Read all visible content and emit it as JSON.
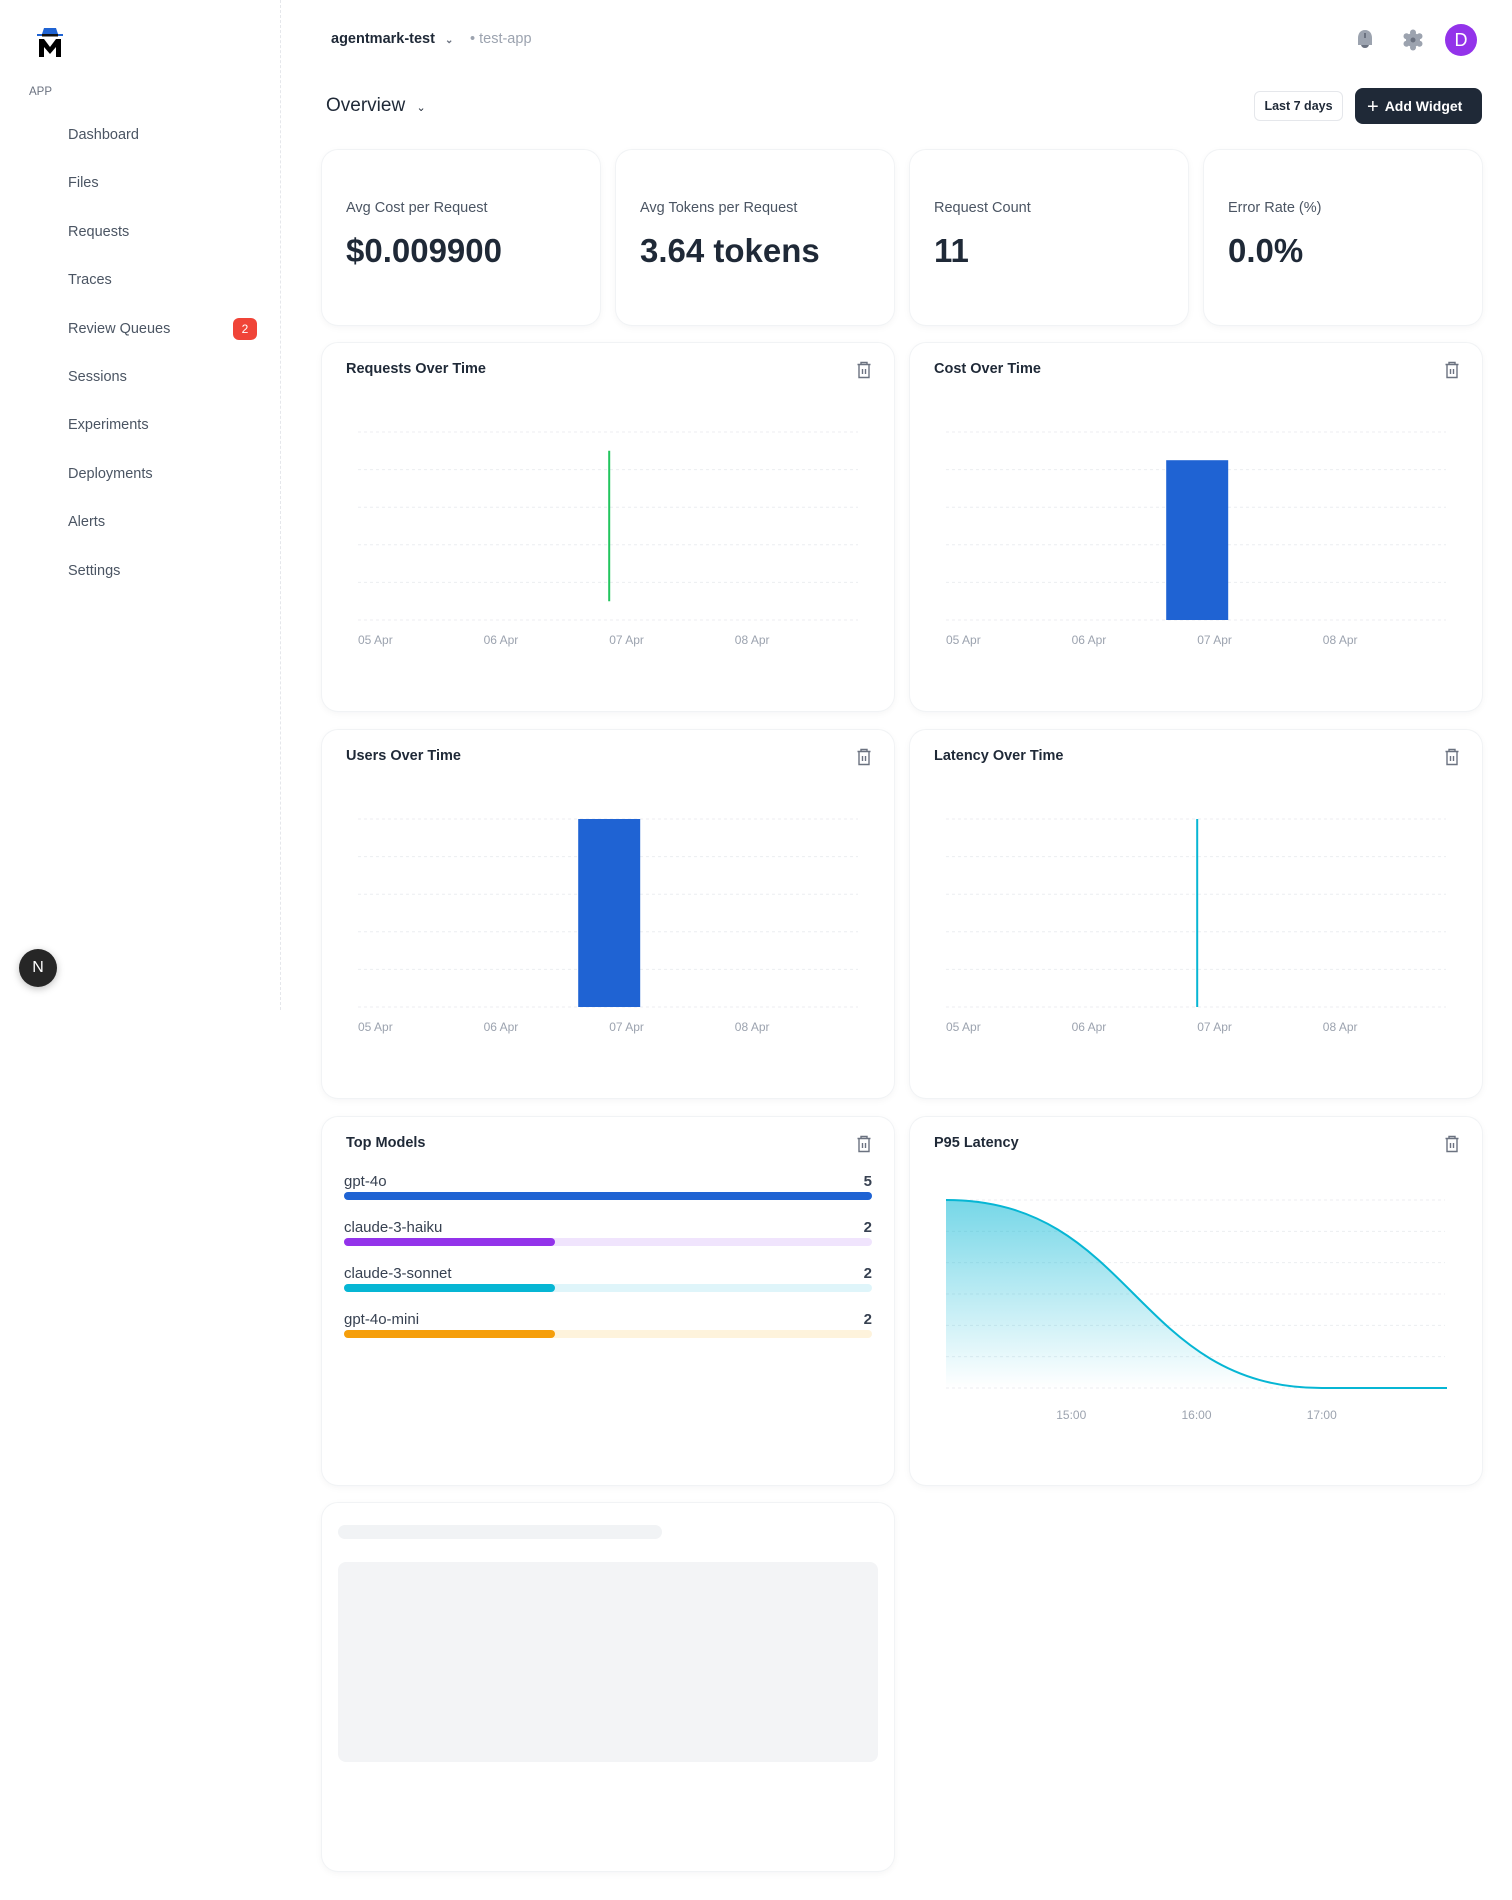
{
  "sidebar": {
    "section_label": "APP",
    "items": [
      {
        "label": "Dashboard"
      },
      {
        "label": "Files"
      },
      {
        "label": "Requests"
      },
      {
        "label": "Traces"
      },
      {
        "label": "Review Queues",
        "badge": "2"
      },
      {
        "label": "Sessions"
      },
      {
        "label": "Experiments"
      },
      {
        "label": "Deployments"
      },
      {
        "label": "Alerts"
      },
      {
        "label": "Settings"
      }
    ],
    "floating_avatar": "N"
  },
  "header": {
    "org": "agentmark-test",
    "app": "test-app",
    "avatar_initial": "D",
    "avatar_color": "#9333ea",
    "icons": [
      "bell-icon",
      "gear-icon"
    ]
  },
  "toolbar": {
    "title": "Overview",
    "range_label": "Last 7 days",
    "add_widget_label": "Add Widget"
  },
  "stats": [
    {
      "label": "Avg Cost per Request",
      "value": "$0.009900"
    },
    {
      "label": "Avg Tokens per Request",
      "value": "3.64 tokens"
    },
    {
      "label": "Request Count",
      "value": "11"
    },
    {
      "label": "Error Rate (%)",
      "value": "0.0%"
    }
  ],
  "widgets": {
    "requests": {
      "title": "Requests Over Time"
    },
    "cost": {
      "title": "Cost Over Time"
    },
    "users": {
      "title": "Users Over Time"
    },
    "latency": {
      "title": "Latency Over Time"
    },
    "top_models": {
      "title": "Top Models"
    },
    "p95": {
      "title": "P95 Latency"
    }
  },
  "top_models": [
    {
      "name": "gpt-4o",
      "count": "5",
      "value": 5,
      "color": "#1f63d3",
      "track": "#dbe6f8"
    },
    {
      "name": "claude-3-haiku",
      "count": "2",
      "value": 2,
      "color": "#9333ea",
      "track": "#f0e4fd"
    },
    {
      "name": "claude-3-sonnet",
      "count": "2",
      "value": 2,
      "color": "#06b6d4",
      "track": "#dff5fa"
    },
    {
      "name": "gpt-4o-mini",
      "count": "2",
      "value": 2,
      "color": "#f59e0b",
      "track": "#fef3dc"
    }
  ],
  "chart_data": [
    {
      "id": "requests",
      "type": "line",
      "title": "Requests Over Time",
      "x_ticks": [
        "05 Apr",
        "06 Apr",
        "07 Apr",
        "08 Apr"
      ],
      "color": "#22c55e",
      "grid": true,
      "segments": [
        {
          "x": "07 Apr",
          "y_from": 0.1,
          "y_to": 0.9
        }
      ],
      "ylim": [
        0,
        1
      ]
    },
    {
      "id": "cost",
      "type": "bar",
      "title": "Cost Over Time",
      "x_ticks": [
        "05 Apr",
        "06 Apr",
        "07 Apr",
        "08 Apr"
      ],
      "color": "#1f63d3",
      "grid": true,
      "categories": [
        "07 Apr"
      ],
      "values": [
        0.85
      ],
      "ylim": [
        0,
        1
      ]
    },
    {
      "id": "users",
      "type": "bar",
      "title": "Users Over Time",
      "x_ticks": [
        "05 Apr",
        "06 Apr",
        "07 Apr",
        "08 Apr"
      ],
      "color": "#1f63d3",
      "grid": true,
      "categories": [
        "07 Apr"
      ],
      "values": [
        1
      ],
      "ylim": [
        0,
        1
      ]
    },
    {
      "id": "latency",
      "type": "line",
      "title": "Latency Over Time",
      "x_ticks": [
        "05 Apr",
        "06 Apr",
        "07 Apr",
        "08 Apr"
      ],
      "color": "#06b6d4",
      "grid": true,
      "segments": [
        {
          "x": "07 Apr",
          "y_from": 0,
          "y_to": 1
        }
      ],
      "ylim": [
        0,
        1
      ]
    },
    {
      "id": "p95",
      "type": "area",
      "title": "P95 Latency",
      "x_ticks": [
        "15:00",
        "16:00",
        "17:00"
      ],
      "color": "#06b6d4",
      "grid": true,
      "x": [
        "14:00",
        "17:00",
        "18:00"
      ],
      "values": [
        1,
        0,
        0
      ],
      "ylim": [
        0,
        1
      ]
    }
  ]
}
